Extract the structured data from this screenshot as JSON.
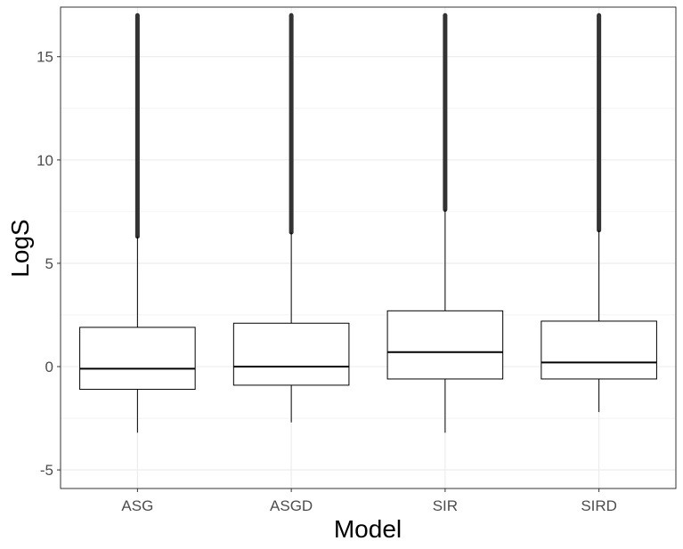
{
  "chart_data": {
    "type": "boxplot",
    "xlabel": "Model",
    "ylabel": "LogS",
    "ylim": [
      -5.9,
      17.4
    ],
    "yticks": [
      -5,
      0,
      5,
      10,
      15
    ],
    "ytick_labels": [
      "-5",
      "0",
      "5",
      "10",
      "15"
    ],
    "grid": true,
    "categories": [
      "ASG",
      "ASGD",
      "SIR",
      "SIRD"
    ],
    "boxes": [
      {
        "category": "ASG",
        "whisker_low": -3.2,
        "q1": -1.1,
        "median": -0.1,
        "q3": 1.9,
        "whisker_high": 6.3,
        "outlier_low": 6.3,
        "outlier_high": 17.0
      },
      {
        "category": "ASGD",
        "whisker_low": -2.7,
        "q1": -0.9,
        "median": 0.0,
        "q3": 2.1,
        "whisker_high": 6.5,
        "outlier_low": 6.5,
        "outlier_high": 17.0
      },
      {
        "category": "SIR",
        "whisker_low": -3.2,
        "q1": -0.6,
        "median": 0.7,
        "q3": 2.7,
        "whisker_high": 7.6,
        "outlier_low": 7.6,
        "outlier_high": 17.0
      },
      {
        "category": "SIRD",
        "whisker_low": -2.2,
        "q1": -0.6,
        "median": 0.2,
        "q3": 2.2,
        "whisker_high": 6.6,
        "outlier_low": 6.6,
        "outlier_high": 17.0
      }
    ],
    "colors": {
      "box_fill": "#ffffff",
      "line": "#000000",
      "outliers": "#333333",
      "grid": "#ebebeb",
      "panel_border": "#333333",
      "tick_text": "#4d4d4d"
    }
  }
}
